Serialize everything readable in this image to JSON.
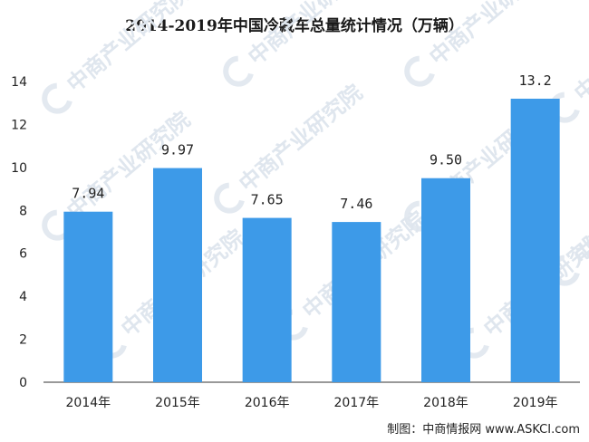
{
  "chart_data": {
    "type": "bar",
    "title": "2014-2019年中国冷藏车总量统计情况（万辆）",
    "categories": [
      "2014年",
      "2015年",
      "2016年",
      "2017年",
      "2018年",
      "2019年"
    ],
    "values": [
      7.94,
      9.97,
      7.65,
      7.46,
      9.5,
      13.2
    ],
    "data_labels": [
      "7.94",
      "9.97",
      "7.65",
      "7.46",
      "9.50",
      "13.2"
    ],
    "ylim": [
      0,
      14
    ],
    "yticks": [
      0,
      2,
      4,
      6,
      8,
      10,
      12,
      14
    ],
    "grid": false,
    "legend": "none",
    "bar_color": "#3d9ae8"
  },
  "watermark": {
    "text": "中商产业研究院"
  },
  "source": "制图：中商情报网 www.ASKCI.com"
}
